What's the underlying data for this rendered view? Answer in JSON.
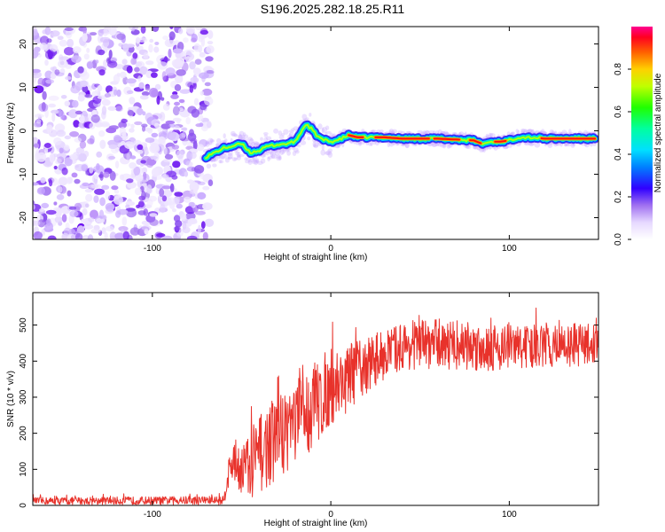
{
  "title": "S196.2025.282.18.25.R11",
  "chart_data": [
    {
      "type": "heatmap",
      "xlabel": "Height of straight line (km)",
      "ylabel": "Frequency (Hz)",
      "xlim": [
        -167,
        150
      ],
      "ylim": [
        -25,
        24
      ],
      "xticks": [
        -100,
        0,
        100
      ],
      "yticks": [
        -20,
        -10,
        0,
        10,
        20
      ],
      "noise_region_x": [
        -167,
        -67
      ],
      "ridge": {
        "x": [
          -70,
          -65,
          -60,
          -55,
          -50,
          -45,
          -40,
          -35,
          -30,
          -25,
          -20,
          -17,
          -14,
          -11,
          -8,
          -5,
          0,
          5,
          10,
          15,
          20,
          30,
          40,
          50,
          60,
          70,
          80,
          85,
          90,
          95,
          100,
          105,
          110,
          115,
          120,
          130,
          140,
          148
        ],
        "y": [
          -6,
          -5,
          -4,
          -3.5,
          -3,
          -5,
          -4.5,
          -3.5,
          -3.2,
          -3,
          -2.5,
          -0.5,
          1.5,
          0.5,
          -1,
          -2,
          -2.5,
          -2,
          -1,
          -1.5,
          -1.5,
          -1.5,
          -1.8,
          -1.8,
          -1.8,
          -2,
          -2.2,
          -3,
          -2.5,
          -2.5,
          -2.2,
          -1.5,
          -1.5,
          -1.6,
          -1.8,
          -1.8,
          -1.8,
          -1.8
        ]
      },
      "colorbar": {
        "label": "Normalized spectral amplitude",
        "range": [
          0,
          1
        ],
        "ticks": [
          "0.0",
          "0.2",
          "0.4",
          "0.6",
          "0.8"
        ]
      }
    },
    {
      "type": "line",
      "series_name": "SNR",
      "xlabel": "Height of straight line (km)",
      "ylabel": "SNR (10 * v/v)",
      "xlim": [
        -167,
        150
      ],
      "ylim": [
        0,
        590
      ],
      "xticks": [
        -100,
        0,
        100
      ],
      "yticks": [
        0,
        100,
        200,
        300,
        400,
        500
      ],
      "color": "#e8322b",
      "trend": {
        "x": [
          -167,
          -60,
          -58,
          -55,
          -50,
          -45,
          -40,
          -30,
          -20,
          -10,
          0,
          10,
          20,
          30,
          40,
          60,
          80,
          100,
          120,
          150
        ],
        "mean": [
          12,
          14,
          80,
          120,
          110,
          90,
          140,
          190,
          230,
          270,
          330,
          350,
          390,
          420,
          440,
          450,
          440,
          440,
          440,
          450
        ],
        "spread": [
          10,
          12,
          45,
          60,
          80,
          100,
          110,
          120,
          120,
          120,
          110,
          90,
          80,
          70,
          65,
          70,
          70,
          65,
          60,
          60
        ]
      }
    }
  ]
}
